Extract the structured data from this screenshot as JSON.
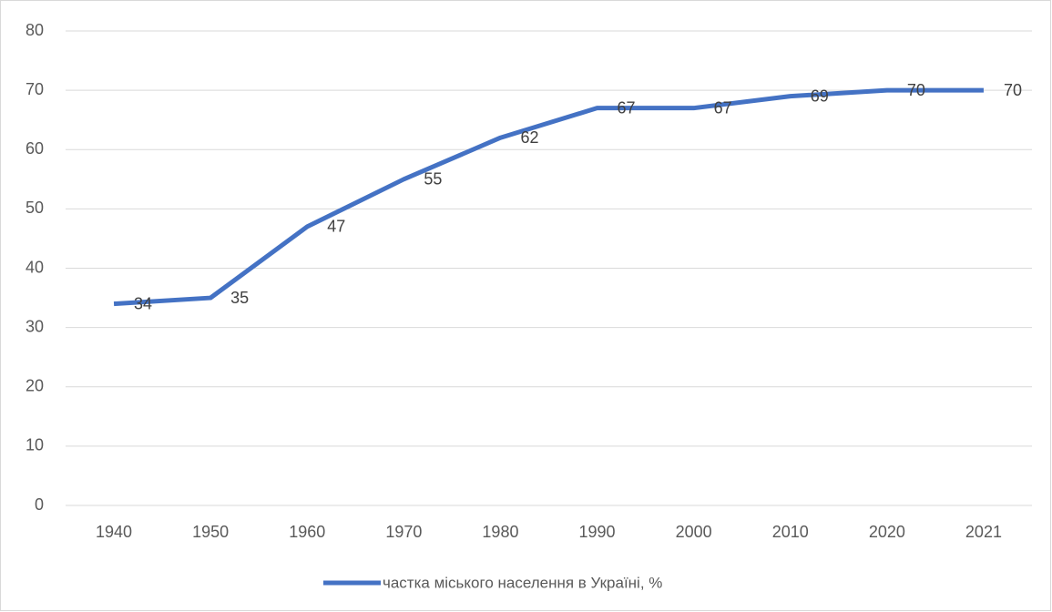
{
  "chart_data": {
    "type": "line",
    "categories": [
      "1940",
      "1950",
      "1960",
      "1970",
      "1980",
      "1990",
      "2000",
      "2010",
      "2020",
      "2021"
    ],
    "series": [
      {
        "name": "частка міського населення в Україні, %",
        "color": "#4472c4",
        "values": [
          34,
          35,
          47,
          55,
          62,
          67,
          67,
          69,
          70,
          70
        ]
      }
    ],
    "ylim": [
      0,
      80
    ],
    "yticks": [
      0,
      10,
      20,
      30,
      40,
      50,
      60,
      70,
      80
    ],
    "grid": true,
    "legend": "bottom"
  }
}
